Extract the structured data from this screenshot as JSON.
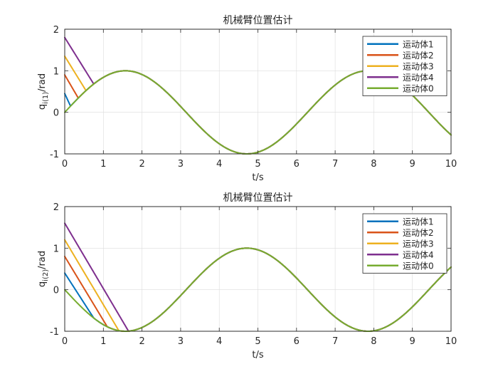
{
  "chart_data": [
    {
      "type": "line",
      "title": "机械臂位置估计",
      "xlabel": "t/s",
      "ylabel": "q_i(1)/rad",
      "ylabel_main": "q",
      "ylabel_sub": "i(1)",
      "ylabel_tail": "/rad",
      "xlim": [
        0,
        10
      ],
      "ylim": [
        -1,
        2
      ],
      "xticks": [
        0,
        1,
        2,
        3,
        4,
        5,
        6,
        7,
        8,
        9,
        10
      ],
      "yticks": [
        -1,
        0,
        1,
        2
      ],
      "grid": true,
      "legend_position": "top-right",
      "true_signal": "sin(t)",
      "series": [
        {
          "name": "运动体1",
          "color": "#0072BD",
          "initial": 0.45,
          "converge_t": 0.15
        },
        {
          "name": "运动体2",
          "color": "#D95319",
          "initial": 0.9,
          "converge_t": 0.35
        },
        {
          "name": "运动体3",
          "color": "#EDB120",
          "initial": 1.35,
          "converge_t": 0.55
        },
        {
          "name": "运动体4",
          "color": "#7E2F8E",
          "initial": 1.8,
          "converge_t": 0.75
        },
        {
          "name": "运动体0",
          "color": "#77AC30",
          "initial": 0.0,
          "converge_t": 0.0
        }
      ]
    },
    {
      "type": "line",
      "title": "机械臂位置估计",
      "xlabel": "t/s",
      "ylabel": "q_i(2)/rad",
      "ylabel_main": "q",
      "ylabel_sub": "i(2)",
      "ylabel_tail": "/rad",
      "xlim": [
        0,
        10
      ],
      "ylim": [
        -1,
        2
      ],
      "xticks": [
        0,
        1,
        2,
        3,
        4,
        5,
        6,
        7,
        8,
        9,
        10
      ],
      "yticks": [
        -1,
        0,
        1,
        2
      ],
      "grid": true,
      "legend_position": "top-right",
      "true_signal": "-sin(t)",
      "series": [
        {
          "name": "运动体1",
          "color": "#0072BD",
          "initial": 0.4,
          "converge_t": 0.75
        },
        {
          "name": "运动体2",
          "color": "#D95319",
          "initial": 0.8,
          "converge_t": 1.1
        },
        {
          "name": "运动体3",
          "color": "#EDB120",
          "initial": 1.2,
          "converge_t": 1.4
        },
        {
          "name": "运动体4",
          "color": "#7E2F8E",
          "initial": 1.6,
          "converge_t": 1.65
        },
        {
          "name": "运动体0",
          "color": "#77AC30",
          "initial": 0.0,
          "converge_t": 0.0
        }
      ]
    }
  ]
}
